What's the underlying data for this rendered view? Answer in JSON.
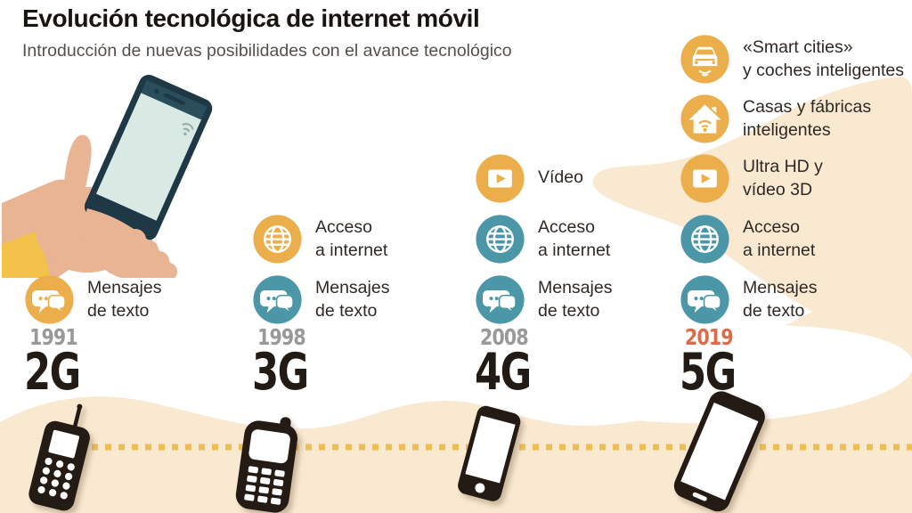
{
  "header": {
    "title": "Evolución tecnológica de internet móvil",
    "subtitle": "Introducción de nuevas posibilidades con el avance tecnológico"
  },
  "hero_icon": "hand-holding-smartphone-illustration",
  "colors": {
    "accent_yellow": "#EBAE4B",
    "accent_teal": "#4B97A8",
    "year_gray": "#9B9998",
    "year_highlight": "#DD6A4B",
    "generation_dark": "#221B15",
    "beige": "#F9E9D1",
    "dotted_line": "#F0BC55",
    "phone_dark": "#241B14",
    "title_dark": "#181410",
    "subtitle_gray": "#55504C"
  },
  "timeline": {
    "columns": [
      {
        "id": "2g",
        "year": "1991",
        "generation": "2G",
        "year_highlighted": false,
        "phone_icon": "brick-phone-icon",
        "features": [
          {
            "tier": "sms",
            "icon": "chat-bubbles-icon",
            "color": "yellow",
            "lines": [
              "Mensajes",
              "de texto"
            ]
          }
        ]
      },
      {
        "id": "3g",
        "year": "1998",
        "generation": "3G",
        "year_highlighted": false,
        "phone_icon": "feature-phone-icon",
        "features": [
          {
            "tier": "internet",
            "icon": "globe-icon",
            "color": "yellow",
            "lines": [
              "Acceso",
              "a internet"
            ]
          },
          {
            "tier": "sms",
            "icon": "chat-bubbles-icon",
            "color": "teal",
            "lines": [
              "Mensajes",
              "de texto"
            ]
          }
        ]
      },
      {
        "id": "4g",
        "year": "2008",
        "generation": "4G",
        "year_highlighted": false,
        "phone_icon": "smartphone-icon",
        "features": [
          {
            "tier": "video",
            "icon": "video-play-icon",
            "color": "yellow",
            "lines": [
              "Vídeo"
            ]
          },
          {
            "tier": "internet",
            "icon": "globe-icon",
            "color": "teal",
            "lines": [
              "Acceso",
              "a internet"
            ]
          },
          {
            "tier": "sms",
            "icon": "chat-bubbles-icon",
            "color": "teal",
            "lines": [
              "Mensajes",
              "de texto"
            ]
          }
        ]
      },
      {
        "id": "5g",
        "year": "2019",
        "generation": "5G",
        "year_highlighted": true,
        "phone_icon": "large-smartphone-icon",
        "features": [
          {
            "tier": "smart",
            "icon": "smart-car-icon",
            "color": "yellow",
            "lines": [
              "«Smart cities»",
              "y coches inteligentes"
            ]
          },
          {
            "tier": "home",
            "icon": "smart-home-icon",
            "color": "yellow",
            "lines": [
              "Casas y fábricas",
              "inteligentes"
            ]
          },
          {
            "tier": "video",
            "icon": "video-play-icon",
            "color": "yellow",
            "lines": [
              "Ultra HD y",
              "vídeo 3D"
            ]
          },
          {
            "tier": "internet",
            "icon": "globe-icon",
            "color": "teal",
            "lines": [
              "Acceso",
              "a internet"
            ]
          },
          {
            "tier": "sms",
            "icon": "chat-bubbles-icon",
            "color": "teal",
            "lines": [
              "Mensajes",
              "de texto"
            ]
          }
        ]
      }
    ]
  }
}
